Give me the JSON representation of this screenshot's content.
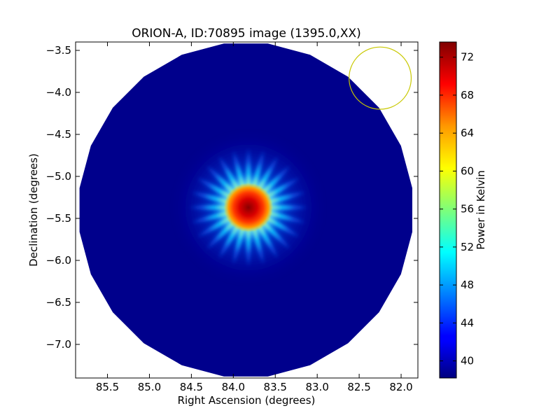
{
  "chart_data": {
    "type": "heatmap",
    "title": "ORION-A, ID:70895 image (1395.0,XX)",
    "xlabel": "Right Ascension (degrees)",
    "ylabel": "Declination (degrees)",
    "xlim": [
      85.88,
      81.8
    ],
    "ylim": [
      -7.4,
      -3.4
    ],
    "x_ticks": [
      85.5,
      85.0,
      84.5,
      84.0,
      83.5,
      83.0,
      82.5,
      82.0
    ],
    "x_tick_labels": [
      "85.5",
      "85.0",
      "84.5",
      "84.0",
      "83.5",
      "83.0",
      "82.5",
      "82.0"
    ],
    "y_ticks": [
      -3.5,
      -4.0,
      -4.5,
      -5.0,
      -5.5,
      -6.0,
      -6.5,
      -7.0
    ],
    "y_tick_labels": [
      "−3.5",
      "−4.0",
      "−4.5",
      "−5.0",
      "−5.5",
      "−6.0",
      "−6.5",
      "−7.0"
    ],
    "image_center": [
      83.85,
      -5.4
    ],
    "image_radius_deg": 2.0,
    "background_kelvin": 38.6,
    "source": {
      "ra": 83.82,
      "dec": -5.37,
      "peak_kelvin": 73.5,
      "spokes": 24,
      "spoke_extent_deg": 0.7
    },
    "beam_circle": {
      "ra": 82.25,
      "dec": -3.83,
      "radius_deg": 0.37,
      "color": "#c8c800"
    },
    "colorbar": {
      "label": "Power in Kelvin",
      "vmin": 38.2,
      "vmax": 73.6,
      "ticks": [
        40,
        44,
        48,
        52,
        56,
        60,
        64,
        68,
        72
      ],
      "tick_labels": [
        "40",
        "44",
        "48",
        "52",
        "56",
        "60",
        "64",
        "68",
        "72"
      ],
      "colormap": "jet"
    }
  }
}
